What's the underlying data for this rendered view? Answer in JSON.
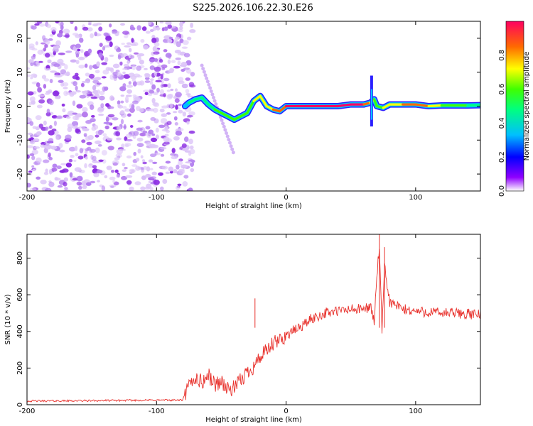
{
  "title": "S225.2026.106.22.30.E26",
  "colors": {
    "snr_line": "#e8302b",
    "axis": "#000000"
  },
  "chart_data": [
    {
      "type": "heatmap",
      "name": "spectrogram",
      "xlabel": "Height of straight line (km)",
      "ylabel": "Frequency (Hz)",
      "xlim": [
        -200,
        150
      ],
      "ylim": [
        -25,
        25
      ],
      "x_ticks": [
        -200,
        -100,
        0,
        100
      ],
      "y_ticks": [
        -20,
        -10,
        0,
        10,
        20
      ],
      "colorbar": {
        "label": "Normalized spectral amplitude",
        "range": [
          0,
          1
        ],
        "ticks": [
          "0.0",
          "0.2",
          "0.4",
          "0.6",
          "0.8"
        ]
      },
      "noise_region": {
        "x_range": [
          -200,
          -78
        ],
        "freq_range": [
          -25,
          25
        ]
      },
      "signal_track": {
        "x": [
          -78,
          -75,
          -70,
          -65,
          -60,
          -55,
          -50,
          -45,
          -40,
          -35,
          -30,
          -25,
          -20,
          -15,
          -10,
          -5,
          0,
          10,
          20,
          30,
          40,
          50,
          60,
          65,
          68,
          70,
          75,
          80,
          90,
          100,
          110,
          120,
          130,
          140,
          150
        ],
        "freq": [
          0,
          1,
          2,
          2.5,
          0.5,
          -1,
          -2,
          -3,
          -4,
          -3,
          -2,
          1.5,
          3,
          0,
          -1,
          -1.5,
          0,
          0,
          0,
          0,
          0,
          0.5,
          0.5,
          1,
          2,
          0,
          -0.5,
          0.5,
          0.5,
          0.5,
          0,
          0.2,
          0.2,
          0.2,
          0.3
        ],
        "amplitude": [
          0.3,
          0.35,
          0.4,
          0.45,
          0.45,
          0.5,
          0.5,
          0.55,
          0.55,
          0.55,
          0.6,
          0.6,
          0.65,
          0.65,
          0.7,
          0.75,
          0.8,
          0.9,
          0.95,
          0.95,
          0.95,
          0.9,
          0.85,
          0.7,
          0.6,
          0.6,
          0.6,
          0.65,
          0.7,
          0.75,
          0.7,
          0.6,
          0.55,
          0.5,
          0.45
        ]
      }
    },
    {
      "type": "line",
      "name": "snr",
      "xlabel": "Height of straight line (km)",
      "ylabel": "SNR (10 * v/v)",
      "xlim": [
        -200,
        150
      ],
      "ylim": [
        0,
        930
      ],
      "x_ticks": [
        -200,
        -100,
        0,
        100
      ],
      "y_ticks": [
        0,
        200,
        400,
        600,
        800
      ],
      "series": [
        {
          "name": "SNR",
          "x": [
            -200,
            -150,
            -100,
            -80,
            -75,
            -70,
            -65,
            -60,
            -55,
            -50,
            -45,
            -40,
            -35,
            -30,
            -25,
            -20,
            -15,
            -10,
            -5,
            0,
            10,
            20,
            30,
            40,
            50,
            60,
            65,
            68,
            70,
            72,
            74,
            76,
            80,
            90,
            100,
            110,
            120,
            130,
            140,
            150
          ],
          "y": [
            20,
            22,
            25,
            25,
            100,
            150,
            120,
            160,
            110,
            130,
            80,
            90,
            130,
            180,
            210,
            260,
            290,
            330,
            350,
            380,
            420,
            470,
            500,
            510,
            520,
            520,
            540,
            450,
            700,
            860,
            400,
            750,
            560,
            520,
            510,
            505,
            500,
            500,
            495,
            490
          ]
        }
      ],
      "spikes": [
        {
          "x": -24,
          "y": 580
        },
        {
          "x": 72,
          "y": 930
        },
        {
          "x": 76,
          "y": 860
        }
      ]
    }
  ]
}
